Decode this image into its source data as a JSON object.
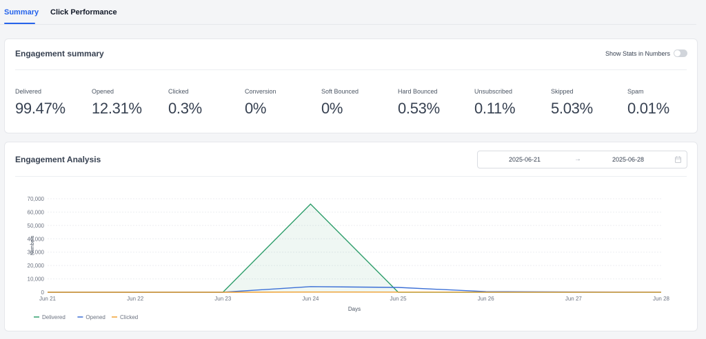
{
  "tabs": [
    {
      "label": "Summary",
      "active": true
    },
    {
      "label": "Click Performance",
      "active": false
    }
  ],
  "summary": {
    "title": "Engagement summary",
    "toggle_label": "Show Stats in Numbers",
    "toggle_on": false,
    "stats": [
      {
        "label": "Delivered",
        "value": "99.47%"
      },
      {
        "label": "Opened",
        "value": "12.31%"
      },
      {
        "label": "Clicked",
        "value": "0.3%"
      },
      {
        "label": "Conversion",
        "value": "0%"
      },
      {
        "label": "Soft Bounced",
        "value": "0%"
      },
      {
        "label": "Hard Bounced",
        "value": "0.53%"
      },
      {
        "label": "Unsubscribed",
        "value": "0.11%"
      },
      {
        "label": "Skipped",
        "value": "5.03%"
      },
      {
        "label": "Spam",
        "value": "0.01%"
      }
    ]
  },
  "analysis": {
    "title": "Engagement Analysis",
    "date_start": "2025-06-21",
    "date_sep": "→",
    "date_end": "2025-06-28",
    "icons": {
      "calendar": "calendar-icon"
    }
  },
  "colors": {
    "accent": "#2563eb",
    "delivered": "#2e9e6b",
    "opened": "#3b6fd6",
    "clicked": "#f0a030"
  },
  "chart_data": {
    "type": "line",
    "categories": [
      "Jun 21",
      "Jun 22",
      "Jun 23",
      "Jun 24",
      "Jun 25",
      "Jun 26",
      "Jun 27",
      "Jun 28"
    ],
    "series": [
      {
        "name": "Delivered",
        "values": [
          0,
          0,
          0,
          66000,
          0,
          0,
          0,
          0
        ],
        "area": true
      },
      {
        "name": "Opened",
        "values": [
          0,
          0,
          0,
          4200,
          3600,
          500,
          200,
          100
        ]
      },
      {
        "name": "Clicked",
        "values": [
          0,
          0,
          0,
          150,
          120,
          40,
          20,
          10
        ]
      }
    ],
    "xlabel": "Days",
    "ylabel": "Numbers",
    "ylim": [
      0,
      70000
    ],
    "yticks": [
      0,
      10000,
      20000,
      30000,
      40000,
      50000,
      60000,
      70000
    ],
    "ytick_labels": [
      "0",
      "10,000",
      "20,000",
      "30,000",
      "40,000",
      "50,000",
      "60,000",
      "70,000"
    ],
    "grid": true,
    "legend": "bottom-left"
  }
}
